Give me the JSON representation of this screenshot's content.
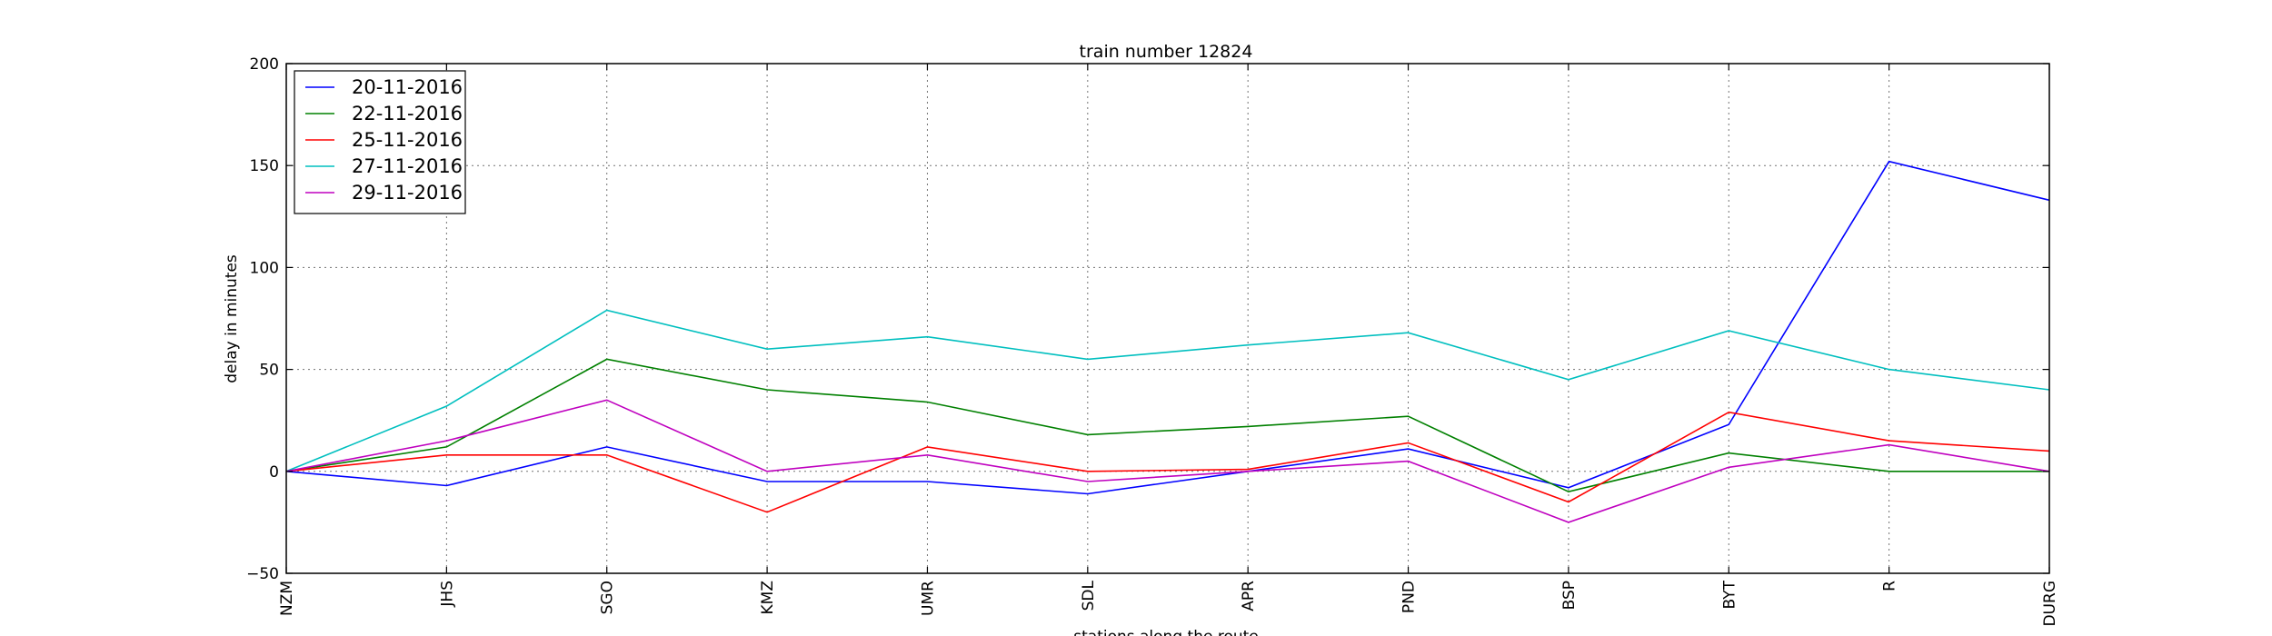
{
  "chart_data": {
    "type": "line",
    "title": "train number 12824",
    "xlabel": "stations along the route",
    "ylabel": "delay in minutes",
    "ylim": [
      -50,
      200
    ],
    "yticks": [
      -50,
      0,
      50,
      100,
      150,
      200
    ],
    "grid": true,
    "legend_position": "top-left",
    "categories": [
      "NZM",
      "JHS",
      "SGO",
      "KMZ",
      "UMR",
      "SDL",
      "APR",
      "PND",
      "BSP",
      "BYT",
      "R",
      "DURG"
    ],
    "series": [
      {
        "name": "20-11-2016",
        "color": "#0000ff",
        "values": [
          0,
          -7,
          12,
          -5,
          -5,
          -11,
          0,
          11,
          -8,
          23,
          152,
          133
        ]
      },
      {
        "name": "22-11-2016",
        "color": "#008000",
        "values": [
          0,
          12,
          55,
          40,
          34,
          18,
          22,
          27,
          -10,
          9,
          0,
          0
        ]
      },
      {
        "name": "25-11-2016",
        "color": "#ff0000",
        "values": [
          0,
          8,
          8,
          -20,
          12,
          0,
          1,
          14,
          -15,
          29,
          15,
          10
        ]
      },
      {
        "name": "27-11-2016",
        "color": "#00bfbf",
        "values": [
          0,
          32,
          79,
          60,
          66,
          55,
          62,
          68,
          45,
          69,
          50,
          40
        ]
      },
      {
        "name": "29-11-2016",
        "color": "#bf00bf",
        "values": [
          0,
          15,
          35,
          0,
          8,
          -5,
          0,
          5,
          -25,
          2,
          13,
          0
        ]
      }
    ]
  }
}
